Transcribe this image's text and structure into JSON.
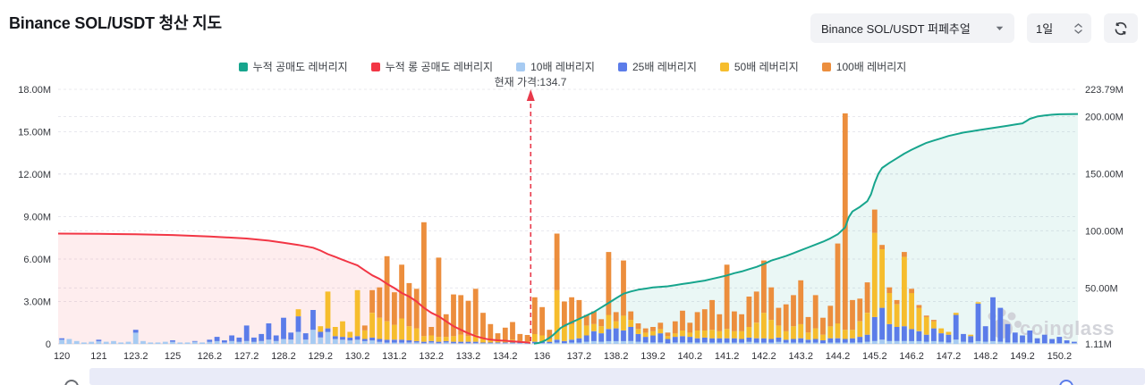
{
  "header": {
    "title": "Binance SOL/USDT 청산 지도"
  },
  "controls": {
    "pair_select": {
      "value": "Binance SOL/USDT 퍼페추얼"
    },
    "interval": {
      "value": "1일"
    },
    "refresh": {
      "icon": "refresh-icon"
    }
  },
  "watermark": "coinglass",
  "chart_data": {
    "type": "bar",
    "title": "Binance SOL/USDT 청산 지도",
    "current_price": 134.7,
    "current_price_label": "현재 가격:134.7",
    "current_price_index": 63.45,
    "legend": [
      {
        "label": "누적 공매도 레버리지",
        "color": "#17a58d"
      },
      {
        "label": "누적 롱 공매도 레버리지",
        "color": "#f23645"
      },
      {
        "label": "10배 레버리지",
        "color": "#a7cbf2"
      },
      {
        "label": "25배 레버리지",
        "color": "#5b7ce9"
      },
      {
        "label": "50배 레버리지",
        "color": "#f6bd2d"
      },
      {
        "label": "100배 레버리지",
        "color": "#ec8e3d"
      }
    ],
    "left_axis": {
      "unit": "M",
      "max": 18,
      "ticks": [
        0,
        3,
        6,
        9,
        12,
        15,
        18
      ],
      "labels": [
        "0",
        "3.00M",
        "6.00M",
        "9.00M",
        "12.00M",
        "15.00M",
        "18.00M"
      ]
    },
    "right_axis": {
      "min": 1.11,
      "max": 223.79,
      "ticks": [
        1.11,
        50,
        100,
        150,
        200,
        223.79
      ],
      "labels": [
        "1.11M",
        "50.00M",
        "100.00M",
        "150.00M",
        "200.00M",
        "223.79M"
      ]
    },
    "x_tick_labels": [
      "120",
      "121",
      "123.2",
      "125",
      "126.2",
      "127.2",
      "128.2",
      "129.2",
      "130.2",
      "131.2",
      "132.2",
      "133.2",
      "134.2",
      "136",
      "137.2",
      "138.2",
      "139.2",
      "140.2",
      "141.2",
      "142.2",
      "143.2",
      "144.2",
      "145.2",
      "146.2",
      "147.2",
      "148.2",
      "149.2",
      "150.2"
    ],
    "bars_per_tick": 5,
    "bar_series": [
      "10배 레버리지",
      "25배 레버리지",
      "50배 레버리지",
      "100배 레버리지"
    ],
    "stack_colors": [
      "#a7cbf2",
      "#5b7ce9",
      "#f6bd2d",
      "#ec8e3d"
    ],
    "bars": [
      [
        0.3,
        0.1,
        0,
        0
      ],
      [
        0.35,
        0,
        0,
        0
      ],
      [
        0.2,
        0,
        0,
        0
      ],
      [
        0.1,
        0,
        0,
        0
      ],
      [
        0.15,
        0,
        0,
        0
      ],
      [
        0.2,
        0.1,
        0,
        0
      ],
      [
        0.15,
        0,
        0,
        0
      ],
      [
        0.2,
        0,
        0,
        0
      ],
      [
        0.1,
        0,
        0,
        0
      ],
      [
        0.15,
        0,
        0,
        0
      ],
      [
        0.8,
        0.2,
        0,
        0
      ],
      [
        0.2,
        0,
        0,
        0
      ],
      [
        0.1,
        0,
        0,
        0
      ],
      [
        0.1,
        0,
        0,
        0
      ],
      [
        0.15,
        0,
        0,
        0
      ],
      [
        0.15,
        0.1,
        0,
        0
      ],
      [
        0.1,
        0,
        0,
        0
      ],
      [
        0.1,
        0,
        0,
        0
      ],
      [
        0.15,
        0.05,
        0,
        0
      ],
      [
        0.1,
        0,
        0,
        0
      ],
      [
        0.15,
        0.15,
        0,
        0
      ],
      [
        0.2,
        0.3,
        0,
        0
      ],
      [
        0.1,
        0.15,
        0,
        0
      ],
      [
        0.2,
        0.4,
        0,
        0
      ],
      [
        0.15,
        0.3,
        0,
        0
      ],
      [
        0.2,
        1.1,
        0,
        0
      ],
      [
        0.15,
        0.3,
        0,
        0
      ],
      [
        0.2,
        0.5,
        0,
        0
      ],
      [
        0.3,
        1.15,
        0,
        0
      ],
      [
        0.2,
        0.4,
        0,
        0
      ],
      [
        0.35,
        1.5,
        0,
        0
      ],
      [
        0.3,
        0.5,
        0,
        0
      ],
      [
        0.85,
        1.1,
        0.5,
        0
      ],
      [
        0.3,
        0.45,
        0,
        0
      ],
      [
        1.0,
        1.4,
        0,
        0
      ],
      [
        0.45,
        0.4,
        0.4,
        0
      ],
      [
        0.85,
        0.25,
        2.6,
        0
      ],
      [
        0.35,
        0.2,
        0.65,
        0
      ],
      [
        0.3,
        0.2,
        1.1,
        0
      ],
      [
        0.25,
        0.2,
        0.4,
        0
      ],
      [
        0.3,
        0.25,
        3.25,
        0
      ],
      [
        0.2,
        0.15,
        0.6,
        0.35
      ],
      [
        0.25,
        0.2,
        1.75,
        1.6
      ],
      [
        0.15,
        0.2,
        1.5,
        2.15
      ],
      [
        0.1,
        0.2,
        1.3,
        4.6
      ],
      [
        0.1,
        0.2,
        1.05,
        2.3
      ],
      [
        0.1,
        0.2,
        1.5,
        3.8
      ],
      [
        0.1,
        0.15,
        1.0,
        3.05
      ],
      [
        0.1,
        0.1,
        0.9,
        2.8
      ],
      [
        0.05,
        0.1,
        0.4,
        8.05
      ],
      [
        0.1,
        0.1,
        0.4,
        0.6
      ],
      [
        0.05,
        0.1,
        0.35,
        5.6
      ],
      [
        0.1,
        0.1,
        0.3,
        1.6
      ],
      [
        0.05,
        0.1,
        0.4,
        2.95
      ],
      [
        0.05,
        0.1,
        0.5,
        2.8
      ],
      [
        0.05,
        0.1,
        0.4,
        2.5
      ],
      [
        0.05,
        0.1,
        0.5,
        3.25
      ],
      [
        0.05,
        0.05,
        0.3,
        1.8
      ],
      [
        0.05,
        0.05,
        0.2,
        1.1
      ],
      [
        0.05,
        0.05,
        0.15,
        0.5
      ],
      [
        0.05,
        0.05,
        0.15,
        0.9
      ],
      [
        0.05,
        0.05,
        0.2,
        1.25
      ],
      [
        0.05,
        0.05,
        0.1,
        0.5
      ],
      [
        0.04,
        0.04,
        0.1,
        0.45
      ],
      [
        0.05,
        0.1,
        0.55,
        2.6
      ],
      [
        0.05,
        0.1,
        0.45,
        2.0
      ],
      [
        0.05,
        0.1,
        0.2,
        0.65
      ],
      [
        0.1,
        0.2,
        3.5,
        4.0
      ],
      [
        0.05,
        0.15,
        1.0,
        1.8
      ],
      [
        0.1,
        0.2,
        1.1,
        1.9
      ],
      [
        0.1,
        0.3,
        1.4,
        1.3
      ],
      [
        0.15,
        0.45,
        0.7,
        0.75
      ],
      [
        0.2,
        0.7,
        0.5,
        0.9
      ],
      [
        0.15,
        0.6,
        0.5,
        0.5
      ],
      [
        0.2,
        0.85,
        1.0,
        4.45
      ],
      [
        0.2,
        0.9,
        0.5,
        0.65
      ],
      [
        0.2,
        0.75,
        1.05,
        3.9
      ],
      [
        0.2,
        1.0,
        0.5,
        0.6
      ],
      [
        0.15,
        0.55,
        0.35,
        0.4
      ],
      [
        0.1,
        0.4,
        0.3,
        0.3
      ],
      [
        0.1,
        0.5,
        0.3,
        0.3
      ],
      [
        0.1,
        0.65,
        0.3,
        0.45
      ],
      [
        0.05,
        0.3,
        0.2,
        0.25
      ],
      [
        0.1,
        0.4,
        0.25,
        0.85
      ],
      [
        0.1,
        0.45,
        0.4,
        1.4
      ],
      [
        0.1,
        0.4,
        0.3,
        0.7
      ],
      [
        0.1,
        0.3,
        0.55,
        1.3
      ],
      [
        0.1,
        0.35,
        0.5,
        1.5
      ],
      [
        0.1,
        0.3,
        0.6,
        2.1
      ],
      [
        0.1,
        0.3,
        0.5,
        1.2
      ],
      [
        0.1,
        0.3,
        0.65,
        4.55
      ],
      [
        0.1,
        0.3,
        0.5,
        1.4
      ],
      [
        0.1,
        0.25,
        0.55,
        1.2
      ],
      [
        0.15,
        0.3,
        0.75,
        2.15
      ],
      [
        0.1,
        0.3,
        1.1,
        2.2
      ],
      [
        0.1,
        0.3,
        1.8,
        3.7
      ],
      [
        0.1,
        0.25,
        1.35,
        2.3
      ],
      [
        0.15,
        0.3,
        0.85,
        1.25
      ],
      [
        0.1,
        0.2,
        0.6,
        1.9
      ],
      [
        0.1,
        0.25,
        0.9,
        2.2
      ],
      [
        0.1,
        0.3,
        1.0,
        3.1
      ],
      [
        0.1,
        0.2,
        0.5,
        1.1
      ],
      [
        0.1,
        0.25,
        0.75,
        2.35
      ],
      [
        0.05,
        0.2,
        0.4,
        1.2
      ],
      [
        0.1,
        0.3,
        0.85,
        1.45
      ],
      [
        0.1,
        0.3,
        1.05,
        5.65
      ],
      [
        0.1,
        0.25,
        0.65,
        15.3
      ],
      [
        0.1,
        0.3,
        0.6,
        2.1
      ],
      [
        0.1,
        0.4,
        1.1,
        1.6
      ],
      [
        0.15,
        0.5,
        1.55,
        2.15
      ],
      [
        0.2,
        1.7,
        5.95,
        1.65
      ],
      [
        0.3,
        2.25,
        4.15,
        0.3
      ],
      [
        0.2,
        1.2,
        2.2,
        0.4
      ],
      [
        0.2,
        1.0,
        1.6,
        0.3
      ],
      [
        0.2,
        1.05,
        4.9,
        0.35
      ],
      [
        0.2,
        0.85,
        2.55,
        0.3
      ],
      [
        0.2,
        0.7,
        1.65,
        0.2
      ],
      [
        0.15,
        0.5,
        1.25,
        0.1
      ],
      [
        0.2,
        0.9,
        0.5,
        0.1
      ],
      [
        0.15,
        0.6,
        0.35,
        0
      ],
      [
        0.1,
        0.55,
        0.2,
        0
      ],
      [
        0.3,
        1.75,
        0.15,
        0
      ],
      [
        0.15,
        0.55,
        0,
        0
      ],
      [
        0.1,
        0.45,
        0.1,
        0
      ],
      [
        0.2,
        2.65,
        0.1,
        0
      ],
      [
        0.15,
        1.1,
        0,
        0
      ],
      [
        0.2,
        3.1,
        0,
        0
      ],
      [
        0.15,
        2.4,
        0,
        0
      ],
      [
        0.1,
        1.3,
        0,
        0
      ],
      [
        0.1,
        0.7,
        0,
        0
      ],
      [
        0.1,
        0.5,
        0,
        0
      ],
      [
        0.1,
        0.85,
        0,
        0
      ],
      [
        0.05,
        0.35,
        0,
        0
      ],
      [
        0.05,
        0.6,
        0,
        0
      ],
      [
        0.05,
        0.3,
        0,
        0
      ],
      [
        0.05,
        0.45,
        0,
        0
      ],
      [
        0.05,
        0.2,
        0,
        0
      ],
      [
        0.05,
        0.1,
        0,
        0
      ]
    ],
    "cum_long": {
      "name": "누적 롱 공매도 레버리지",
      "color": "#f23645",
      "axis": "left",
      "points": [
        [
          -0.5,
          7.8
        ],
        [
          5,
          7.78
        ],
        [
          10,
          7.75
        ],
        [
          15,
          7.7
        ],
        [
          20,
          7.6
        ],
        [
          25,
          7.45
        ],
        [
          28,
          7.3
        ],
        [
          30,
          7.15
        ],
        [
          32,
          7.0
        ],
        [
          34,
          6.8
        ],
        [
          35,
          6.6
        ],
        [
          36,
          6.35
        ],
        [
          37,
          6.15
        ],
        [
          38,
          5.95
        ],
        [
          39,
          5.75
        ],
        [
          40,
          5.55
        ],
        [
          41,
          5.2
        ],
        [
          42,
          4.85
        ],
        [
          43,
          4.6
        ],
        [
          44,
          4.25
        ],
        [
          45,
          3.95
        ],
        [
          46,
          3.6
        ],
        [
          47,
          3.35
        ],
        [
          48,
          3.0
        ],
        [
          49,
          2.55
        ],
        [
          50,
          2.2
        ],
        [
          51,
          1.95
        ],
        [
          52,
          1.6
        ],
        [
          53,
          1.25
        ],
        [
          54,
          1.0
        ],
        [
          55,
          0.75
        ],
        [
          56,
          0.55
        ],
        [
          57,
          0.4
        ],
        [
          58,
          0.3
        ],
        [
          59,
          0.25
        ],
        [
          60,
          0.22
        ],
        [
          61,
          0.18
        ],
        [
          62,
          0.14
        ],
        [
          63,
          0.1
        ],
        [
          63.4,
          0.07
        ]
      ]
    },
    "cum_short": {
      "name": "누적 공매도 레버리지",
      "color": "#17a58d",
      "axis": "right",
      "points": [
        [
          63.9,
          1.3
        ],
        [
          64.5,
          2.0
        ],
        [
          65,
          3.0
        ],
        [
          65.5,
          4.5
        ],
        [
          66,
          6.5
        ],
        [
          66.5,
          9.0
        ],
        [
          67,
          12
        ],
        [
          67.5,
          15
        ],
        [
          68,
          17
        ],
        [
          69,
          20
        ],
        [
          70,
          23
        ],
        [
          71,
          26
        ],
        [
          72,
          29
        ],
        [
          73,
          33
        ],
        [
          74,
          37
        ],
        [
          75,
          41
        ],
        [
          76,
          45
        ],
        [
          77,
          47
        ],
        [
          78,
          48.5
        ],
        [
          79,
          49.5
        ],
        [
          80,
          50.5
        ],
        [
          81,
          51
        ],
        [
          82,
          51.5
        ],
        [
          83,
          52.5
        ],
        [
          84,
          53.5
        ],
        [
          85,
          54.5
        ],
        [
          86,
          55.5
        ],
        [
          87,
          56.5
        ],
        [
          88,
          58
        ],
        [
          89,
          59.5
        ],
        [
          90,
          61
        ],
        [
          91,
          63
        ],
        [
          92,
          64.5
        ],
        [
          93,
          66.5
        ],
        [
          94,
          68.5
        ],
        [
          95,
          71
        ],
        [
          96,
          74
        ],
        [
          97,
          76
        ],
        [
          98,
          78
        ],
        [
          99,
          80.5
        ],
        [
          100,
          83
        ],
        [
          101,
          85.5
        ],
        [
          102,
          88
        ],
        [
          103,
          90.5
        ],
        [
          104,
          93.5
        ],
        [
          105,
          97
        ],
        [
          106,
          103
        ],
        [
          106.5,
          112
        ],
        [
          107,
          117
        ],
        [
          108,
          121
        ],
        [
          109,
          126
        ],
        [
          109.5,
          132
        ],
        [
          110,
          142
        ],
        [
          110.5,
          150
        ],
        [
          111,
          155
        ],
        [
          112,
          159.5
        ],
        [
          113,
          163.5
        ],
        [
          114,
          167.5
        ],
        [
          115,
          171
        ],
        [
          116,
          174
        ],
        [
          117,
          177
        ],
        [
          118,
          179
        ],
        [
          119,
          181
        ],
        [
          120,
          183
        ],
        [
          121,
          184.5
        ],
        [
          122,
          186
        ],
        [
          123,
          187
        ],
        [
          124,
          188
        ],
        [
          125,
          189
        ],
        [
          126,
          190
        ],
        [
          127,
          191
        ],
        [
          128,
          192
        ],
        [
          129,
          193
        ],
        [
          130,
          194
        ],
        [
          130.5,
          196
        ],
        [
          131,
          198
        ],
        [
          132,
          200
        ],
        [
          133,
          201
        ],
        [
          134,
          201.6
        ],
        [
          135,
          202
        ],
        [
          137.5,
          202.2
        ]
      ]
    },
    "colors": {
      "grid": "#e8e8ee",
      "axis_text": "#34373d",
      "band": "#e9ebf8",
      "watermark": "#cfd0d6",
      "long_fill": "rgba(242,54,69,0.09)",
      "short_fill": "rgba(23,165,141,0.09)",
      "price_line": "#e8394a"
    }
  }
}
